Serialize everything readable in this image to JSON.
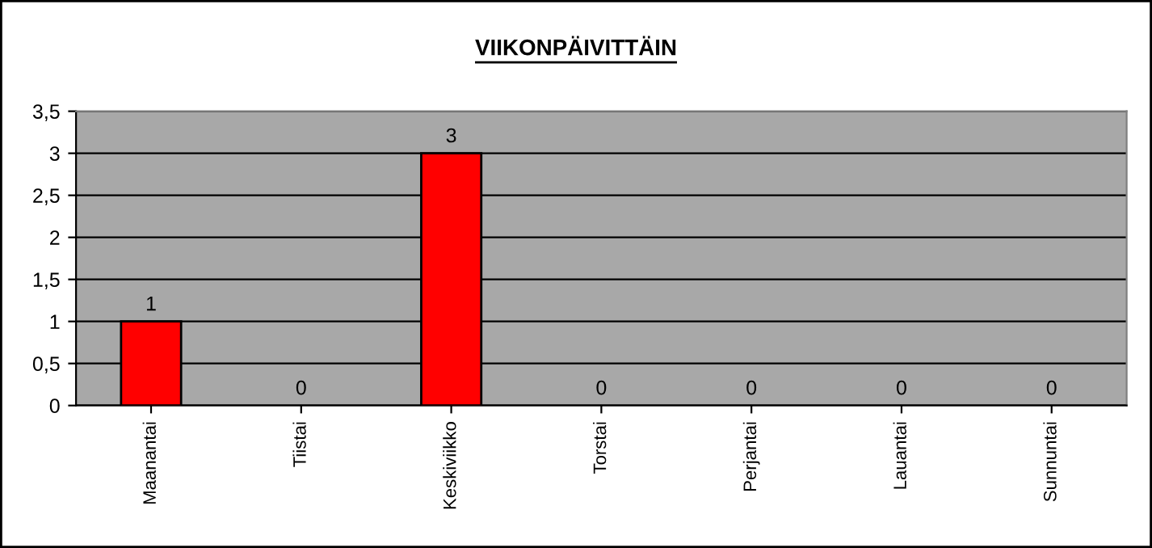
{
  "chart_data": {
    "type": "bar",
    "title": "VIIKONPÄIVITTÄIN",
    "categories": [
      "Maanantai",
      "Tiistai",
      "Keskiviikko",
      "Torstai",
      "Perjantai",
      "Lauantai",
      "Sunnuntai"
    ],
    "values": [
      1,
      0,
      3,
      0,
      0,
      0,
      0
    ],
    "color": "#ff0000",
    "ylim": [
      0,
      3.5
    ],
    "yticks": [
      0,
      {
        "value": 0.5,
        "label": "0,5"
      },
      1,
      {
        "value": 1.5,
        "label": "1,5"
      },
      2,
      {
        "value": 2.5,
        "label": "2,5"
      },
      3,
      {
        "value": 3.5,
        "label": "3,5"
      }
    ],
    "grid": "y",
    "data_labels": true,
    "legend": false
  }
}
